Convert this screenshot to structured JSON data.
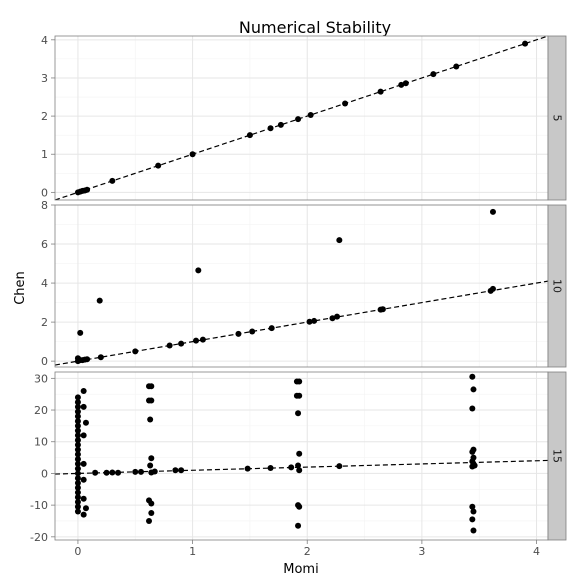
{
  "title": "Numerical Stability",
  "xlabel": "Momi",
  "ylabel": "Chen",
  "colors": {
    "point": "#000000",
    "line": "#000000",
    "strip": "#c8c8c8",
    "grid_major": "#e6e6e6",
    "grid_minor": "#f3f3f3",
    "axis_text": "#4d4d4d",
    "frame": "#7f7f7f"
  },
  "chart_data": {
    "type": "scatter",
    "facet_by": "row",
    "x_range": [
      -0.2,
      4.1
    ],
    "x_ticks": [
      0,
      1,
      2,
      3,
      4
    ],
    "grid": true,
    "reference_line": "dashed, y = x",
    "panels": [
      {
        "label": "5",
        "y_range": [
          -0.2,
          4.1
        ],
        "y_ticks": [
          0,
          1,
          2,
          3,
          4
        ],
        "points": [
          [
            0.0,
            0.0
          ],
          [
            0.02,
            0.02
          ],
          [
            0.04,
            0.04
          ],
          [
            0.06,
            0.05
          ],
          [
            0.08,
            0.07
          ],
          [
            0.3,
            0.3
          ],
          [
            0.7,
            0.7
          ],
          [
            1.0,
            1.0
          ],
          [
            1.5,
            1.5
          ],
          [
            1.68,
            1.68
          ],
          [
            1.77,
            1.77
          ],
          [
            1.92,
            1.92
          ],
          [
            2.03,
            2.03
          ],
          [
            2.33,
            2.33
          ],
          [
            2.64,
            2.64
          ],
          [
            2.82,
            2.82
          ],
          [
            2.86,
            2.86
          ],
          [
            3.1,
            3.1
          ],
          [
            3.3,
            3.3
          ],
          [
            3.9,
            3.9
          ]
        ]
      },
      {
        "label": "10",
        "y_range": [
          -0.3,
          8.0
        ],
        "y_ticks": [
          0,
          2,
          4,
          6,
          8
        ],
        "points": [
          [
            0.0,
            0.0
          ],
          [
            0.0,
            0.15
          ],
          [
            0.02,
            0.05
          ],
          [
            0.04,
            0.05
          ],
          [
            0.06,
            0.08
          ],
          [
            0.08,
            0.1
          ],
          [
            0.02,
            1.45
          ],
          [
            0.2,
            0.2
          ],
          [
            0.19,
            3.1
          ],
          [
            0.5,
            0.5
          ],
          [
            0.8,
            0.8
          ],
          [
            0.9,
            0.9
          ],
          [
            1.03,
            1.05
          ],
          [
            1.09,
            1.1
          ],
          [
            1.05,
            4.65
          ],
          [
            1.4,
            1.4
          ],
          [
            1.52,
            1.52
          ],
          [
            1.69,
            1.69
          ],
          [
            2.02,
            2.02
          ],
          [
            2.06,
            2.06
          ],
          [
            2.22,
            2.2
          ],
          [
            2.26,
            2.28
          ],
          [
            2.28,
            6.2
          ],
          [
            2.64,
            2.64
          ],
          [
            2.66,
            2.66
          ],
          [
            3.6,
            3.6
          ],
          [
            3.62,
            3.7
          ],
          [
            3.62,
            7.65
          ]
        ]
      },
      {
        "label": "15",
        "y_range": [
          -21,
          32
        ],
        "y_ticks": [
          -20,
          -10,
          0,
          10,
          20,
          30
        ],
        "points": [
          [
            0.0,
            24
          ],
          [
            0.0,
            22.5
          ],
          [
            0.0,
            21
          ],
          [
            0.0,
            19.5
          ],
          [
            0.0,
            18
          ],
          [
            0.0,
            16.5
          ],
          [
            0.0,
            15
          ],
          [
            0.0,
            13.5
          ],
          [
            0.0,
            12
          ],
          [
            0.0,
            10.5
          ],
          [
            0.0,
            9
          ],
          [
            0.0,
            7.5
          ],
          [
            0.0,
            6
          ],
          [
            0.0,
            4.5
          ],
          [
            0.0,
            3
          ],
          [
            0.0,
            1.5
          ],
          [
            0.0,
            0
          ],
          [
            0.0,
            -1.5
          ],
          [
            0.0,
            -3
          ],
          [
            0.0,
            -4.5
          ],
          [
            0.0,
            -6
          ],
          [
            0.0,
            -7.5
          ],
          [
            0.0,
            -9
          ],
          [
            0.0,
            -10.5
          ],
          [
            0.0,
            -12
          ],
          [
            0.05,
            26
          ],
          [
            0.05,
            21
          ],
          [
            0.05,
            12
          ],
          [
            0.05,
            3
          ],
          [
            0.05,
            -2
          ],
          [
            0.05,
            -8
          ],
          [
            0.05,
            -13
          ],
          [
            0.07,
            16
          ],
          [
            0.07,
            -11
          ],
          [
            0.15,
            0.2
          ],
          [
            0.25,
            0.2
          ],
          [
            0.3,
            0.3
          ],
          [
            0.35,
            0.2
          ],
          [
            0.5,
            0.5
          ],
          [
            0.55,
            0.5
          ],
          [
            0.62,
            27.5
          ],
          [
            0.64,
            27.5
          ],
          [
            0.62,
            23
          ],
          [
            0.64,
            23
          ],
          [
            0.63,
            17
          ],
          [
            0.64,
            4.8
          ],
          [
            0.63,
            2.5
          ],
          [
            0.64,
            0.3
          ],
          [
            0.62,
            -8.5
          ],
          [
            0.64,
            -9.5
          ],
          [
            0.64,
            -12.5
          ],
          [
            0.62,
            -15
          ],
          [
            0.67,
            0.6
          ],
          [
            0.85,
            1.0
          ],
          [
            0.9,
            1.0
          ],
          [
            1.48,
            1.5
          ],
          [
            1.68,
            1.7
          ],
          [
            1.86,
            1.9
          ],
          [
            1.91,
            29
          ],
          [
            1.93,
            29
          ],
          [
            1.91,
            24.5
          ],
          [
            1.93,
            24.5
          ],
          [
            1.92,
            19
          ],
          [
            1.93,
            6.2
          ],
          [
            1.92,
            2.5
          ],
          [
            1.93,
            1.0
          ],
          [
            1.92,
            -10
          ],
          [
            1.93,
            -10.5
          ],
          [
            1.92,
            -16.5
          ],
          [
            2.28,
            2.3
          ],
          [
            3.44,
            30.5
          ],
          [
            3.45,
            26.5
          ],
          [
            3.44,
            20.5
          ],
          [
            3.45,
            7.5
          ],
          [
            3.44,
            6.8
          ],
          [
            3.45,
            5.0
          ],
          [
            3.44,
            3.8
          ],
          [
            3.45,
            3.0
          ],
          [
            3.44,
            2.2
          ],
          [
            3.46,
            2.5
          ],
          [
            3.44,
            -10.5
          ],
          [
            3.45,
            -12
          ],
          [
            3.44,
            -14.5
          ],
          [
            3.45,
            -18
          ]
        ]
      }
    ]
  }
}
